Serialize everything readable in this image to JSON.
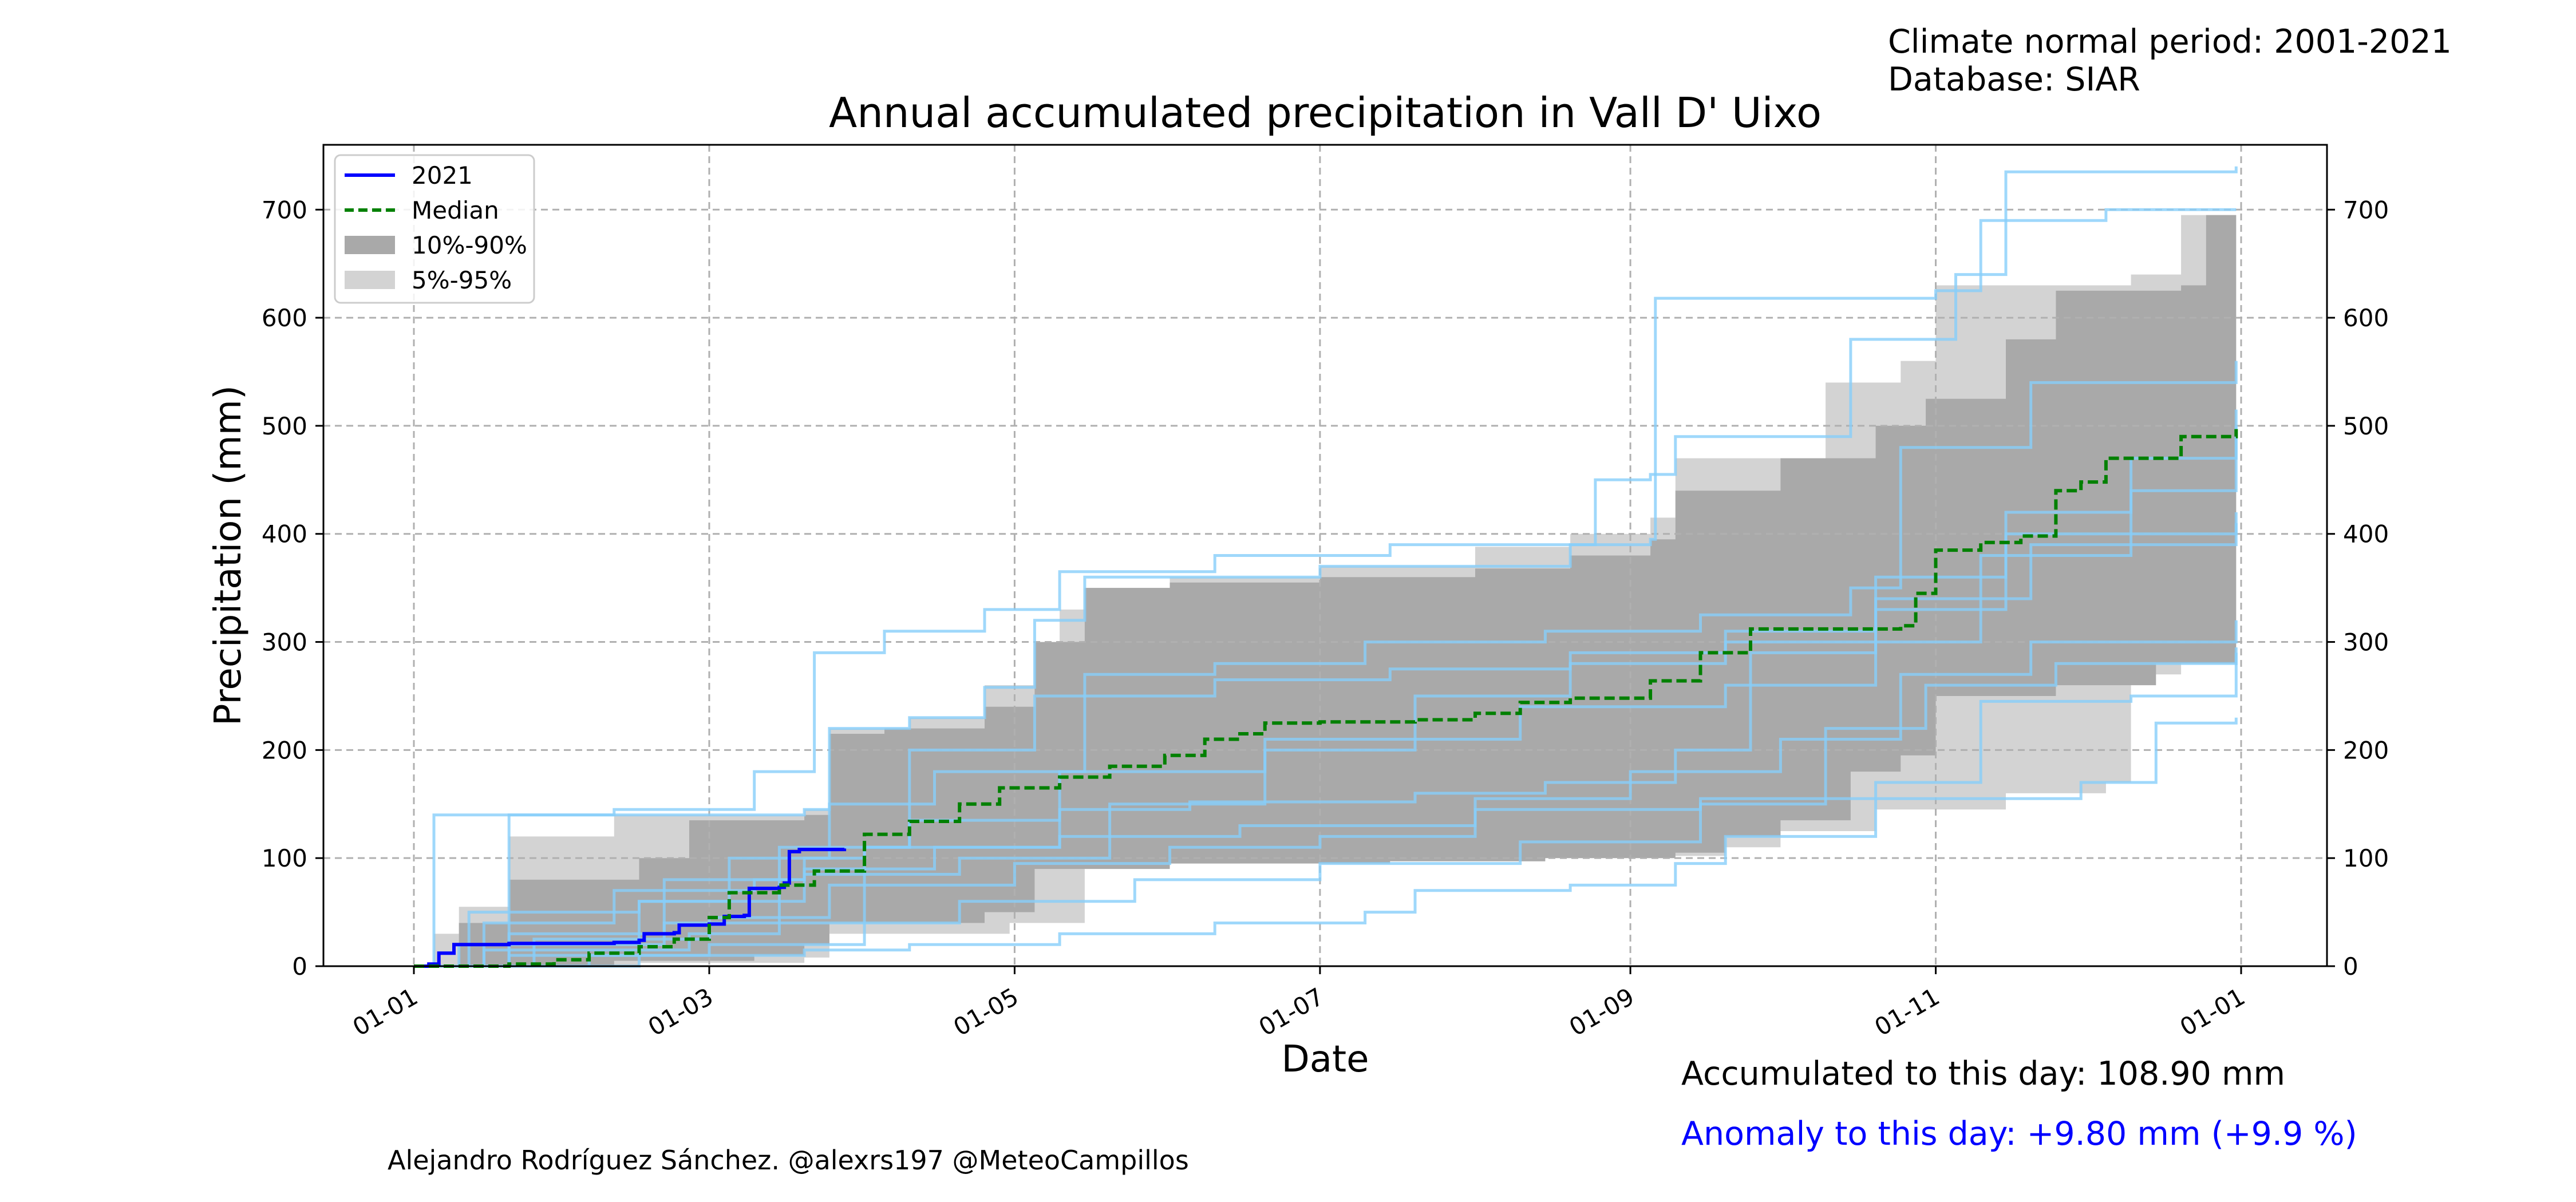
{
  "header": {
    "climate_normal": "Climate normal period: 2001-2021",
    "database": "Database: SIAR"
  },
  "footer": {
    "accumulated": "Accumulated to this day: 108.90 mm",
    "anomaly": "Anomaly to this day: +9.80 mm (+9.9 %)",
    "credit": "Alejandro Rodríguez Sánchez. @alexrs197 @MeteoCampillos"
  },
  "colors": {
    "current_year": "#0000ff",
    "median": "#008000",
    "band_10_90": "#a9a9a9",
    "band_5_95": "#d3d3d3",
    "historical_years": "#87cefa",
    "grid": "#b0b0b0"
  },
  "chart_data": {
    "type": "line",
    "title": "Annual accumulated precipitation in Vall D' Uixo",
    "xlabel": "Date",
    "ylabel": "Precipitation (mm)",
    "x_ticks": [
      "01-01",
      "01-03",
      "01-05",
      "01-07",
      "01-09",
      "01-11",
      "01-01"
    ],
    "y_ticks": [
      0,
      100,
      200,
      300,
      400,
      500,
      600,
      700
    ],
    "ylim": [
      0,
      760
    ],
    "grid": true,
    "legend_position": "top-left",
    "legend": [
      "2021",
      "Median",
      "10%-90%",
      "5%-95%"
    ],
    "series": [
      {
        "name": "2021",
        "style": "solid",
        "points": [
          [
            "01-01",
            0
          ],
          [
            "01-04",
            2
          ],
          [
            "01-06",
            12
          ],
          [
            "01-09",
            20
          ],
          [
            "01-15",
            20
          ],
          [
            "01-20",
            21
          ],
          [
            "02-05",
            21
          ],
          [
            "02-10",
            22
          ],
          [
            "02-15",
            24
          ],
          [
            "02-16",
            30
          ],
          [
            "02-22",
            31
          ],
          [
            "02-23",
            38
          ],
          [
            "03-01",
            39
          ],
          [
            "03-04",
            46
          ],
          [
            "03-08",
            47
          ],
          [
            "03-09",
            72
          ],
          [
            "03-15",
            73
          ],
          [
            "03-16",
            77
          ],
          [
            "03-17",
            106
          ],
          [
            "03-19",
            108
          ],
          [
            "03-28",
            108.9
          ]
        ]
      },
      {
        "name": "Median",
        "style": "dashed",
        "points": [
          [
            "01-01",
            0
          ],
          [
            "01-20",
            2
          ],
          [
            "01-29",
            6
          ],
          [
            "02-05",
            12
          ],
          [
            "02-15",
            18
          ],
          [
            "02-22",
            25
          ],
          [
            "03-01",
            45
          ],
          [
            "03-05",
            68
          ],
          [
            "03-15",
            75
          ],
          [
            "03-22",
            88
          ],
          [
            "04-01",
            122
          ],
          [
            "04-10",
            134
          ],
          [
            "04-20",
            150
          ],
          [
            "04-28",
            165
          ],
          [
            "05-10",
            175
          ],
          [
            "05-20",
            185
          ],
          [
            "05-31",
            195
          ],
          [
            "06-08",
            210
          ],
          [
            "06-15",
            215
          ],
          [
            "06-20",
            225
          ],
          [
            "07-01",
            226
          ],
          [
            "07-20",
            228
          ],
          [
            "08-01",
            234
          ],
          [
            "08-10",
            244
          ],
          [
            "08-20",
            248
          ],
          [
            "09-05",
            264
          ],
          [
            "09-15",
            290
          ],
          [
            "09-25",
            312
          ],
          [
            "10-25",
            315
          ],
          [
            "10-28",
            345
          ],
          [
            "11-01",
            385
          ],
          [
            "11-10",
            392
          ],
          [
            "11-18",
            398
          ],
          [
            "11-25",
            440
          ],
          [
            "11-30",
            448
          ],
          [
            "12-05",
            470
          ],
          [
            "12-20",
            490
          ],
          [
            "12-31",
            497
          ]
        ]
      }
    ],
    "bands": [
      {
        "name": "5%-95%",
        "upper": [
          [
            "01-01",
            0
          ],
          [
            "01-05",
            30
          ],
          [
            "01-10",
            55
          ],
          [
            "01-20",
            120
          ],
          [
            "02-10",
            140
          ],
          [
            "03-20",
            145
          ],
          [
            "03-25",
            220
          ],
          [
            "04-10",
            230
          ],
          [
            "04-25",
            260
          ],
          [
            "05-10",
            330
          ],
          [
            "05-15",
            350
          ],
          [
            "06-01",
            360
          ],
          [
            "07-01",
            370
          ],
          [
            "08-01",
            388
          ],
          [
            "08-20",
            400
          ],
          [
            "09-05",
            415
          ],
          [
            "09-10",
            470
          ],
          [
            "10-10",
            540
          ],
          [
            "10-25",
            560
          ],
          [
            "11-01",
            630
          ],
          [
            "12-10",
            640
          ],
          [
            "12-20",
            695
          ],
          [
            "12-31",
            700
          ]
        ],
        "lower": [
          [
            "01-01",
            0
          ],
          [
            "02-15",
            3
          ],
          [
            "03-20",
            8
          ],
          [
            "03-25",
            30
          ],
          [
            "04-30",
            40
          ],
          [
            "05-15",
            95
          ],
          [
            "06-15",
            98
          ],
          [
            "07-15",
            100
          ],
          [
            "08-15",
            102
          ],
          [
            "09-10",
            102
          ],
          [
            "09-20",
            110
          ],
          [
            "10-01",
            125
          ],
          [
            "10-20",
            145
          ],
          [
            "11-15",
            160
          ],
          [
            "12-05",
            170
          ],
          [
            "12-10",
            270
          ],
          [
            "12-20",
            285
          ],
          [
            "12-31",
            290
          ]
        ]
      },
      {
        "name": "10%-90%",
        "upper": [
          [
            "01-01",
            0
          ],
          [
            "01-10",
            40
          ],
          [
            "01-20",
            80
          ],
          [
            "02-15",
            100
          ],
          [
            "02-25",
            135
          ],
          [
            "03-20",
            140
          ],
          [
            "03-25",
            215
          ],
          [
            "04-05",
            220
          ],
          [
            "04-25",
            240
          ],
          [
            "05-05",
            300
          ],
          [
            "05-15",
            350
          ],
          [
            "06-01",
            355
          ],
          [
            "07-01",
            360
          ],
          [
            "08-01",
            368
          ],
          [
            "08-20",
            380
          ],
          [
            "09-05",
            395
          ],
          [
            "09-10",
            440
          ],
          [
            "10-01",
            470
          ],
          [
            "10-20",
            500
          ],
          [
            "10-30",
            525
          ],
          [
            "11-15",
            580
          ],
          [
            "11-25",
            625
          ],
          [
            "12-20",
            630
          ],
          [
            "12-25",
            695
          ],
          [
            "12-31",
            695
          ]
        ],
        "lower": [
          [
            "01-01",
            0
          ],
          [
            "02-10",
            5
          ],
          [
            "03-10",
            10
          ],
          [
            "03-20",
            20
          ],
          [
            "03-25",
            40
          ],
          [
            "04-25",
            50
          ],
          [
            "05-05",
            90
          ],
          [
            "06-01",
            95
          ],
          [
            "07-15",
            97
          ],
          [
            "08-15",
            100
          ],
          [
            "09-10",
            105
          ],
          [
            "09-20",
            120
          ],
          [
            "10-01",
            135
          ],
          [
            "10-15",
            180
          ],
          [
            "10-25",
            195
          ],
          [
            "11-01",
            250
          ],
          [
            "11-25",
            260
          ],
          [
            "12-15",
            280
          ],
          [
            "12-31",
            285
          ]
        ]
      }
    ],
    "historical_years": [
      [
        [
          "01-01",
          0
        ],
        [
          "01-20",
          140
        ],
        [
          "03-20",
          145
        ],
        [
          "03-25",
          220
        ],
        [
          "04-10",
          230
        ],
        [
          "04-25",
          258
        ],
        [
          "05-05",
          320
        ],
        [
          "05-15",
          360
        ],
        [
          "07-01",
          370
        ],
        [
          "08-20",
          390
        ],
        [
          "09-05",
          395
        ],
        [
          "09-06",
          618
        ],
        [
          "11-01",
          625
        ],
        [
          "11-10",
          690
        ],
        [
          "12-05",
          700
        ],
        [
          "12-31",
          700
        ]
      ],
      [
        [
          "01-01",
          0
        ],
        [
          "01-15",
          40
        ],
        [
          "02-10",
          70
        ],
        [
          "03-10",
          80
        ],
        [
          "03-20",
          100
        ],
        [
          "04-01",
          110
        ],
        [
          "05-10",
          120
        ],
        [
          "06-15",
          130
        ],
        [
          "08-01",
          145
        ],
        [
          "09-15",
          155
        ],
        [
          "10-20",
          170
        ],
        [
          "11-10",
          245
        ],
        [
          "12-10",
          250
        ],
        [
          "12-31",
          290
        ]
      ],
      [
        [
          "01-01",
          0
        ],
        [
          "02-05",
          10
        ],
        [
          "03-20",
          15
        ],
        [
          "04-10",
          20
        ],
        [
          "05-10",
          30
        ],
        [
          "06-10",
          40
        ],
        [
          "07-10",
          50
        ],
        [
          "07-20",
          70
        ],
        [
          "08-20",
          75
        ],
        [
          "09-10",
          95
        ],
        [
          "09-20",
          120
        ],
        [
          "10-20",
          155
        ],
        [
          "11-30",
          170
        ],
        [
          "12-15",
          225
        ],
        [
          "12-31",
          230
        ]
      ],
      [
        [
          "01-01",
          0
        ],
        [
          "01-20",
          30
        ],
        [
          "02-20",
          80
        ],
        [
          "03-20",
          90
        ],
        [
          "04-15",
          110
        ],
        [
          "05-10",
          145
        ],
        [
          "06-05",
          152
        ],
        [
          "07-20",
          160
        ],
        [
          "08-15",
          170
        ],
        [
          "09-10",
          200
        ],
        [
          "09-25",
          290
        ],
        [
          "10-20",
          340
        ],
        [
          "11-20",
          390
        ],
        [
          "12-31",
          420
        ]
      ],
      [
        [
          "01-01",
          0
        ],
        [
          "01-10",
          20
        ],
        [
          "02-20",
          40
        ],
        [
          "03-15",
          110
        ],
        [
          "04-10",
          135
        ],
        [
          "05-10",
          180
        ],
        [
          "06-20",
          210
        ],
        [
          "08-10",
          240
        ],
        [
          "09-20",
          260
        ],
        [
          "10-20",
          300
        ],
        [
          "11-10",
          380
        ],
        [
          "12-10",
          440
        ],
        [
          "12-31",
          500
        ]
      ],
      [
        [
          "01-01",
          0
        ],
        [
          "02-15",
          60
        ],
        [
          "03-20",
          85
        ],
        [
          "04-20",
          100
        ],
        [
          "05-20",
          150
        ],
        [
          "06-20",
          200
        ],
        [
          "07-20",
          250
        ],
        [
          "08-20",
          280
        ],
        [
          "09-20",
          310
        ],
        [
          "10-20",
          360
        ],
        [
          "11-15",
          420
        ],
        [
          "12-10",
          470
        ],
        [
          "12-31",
          515
        ]
      ],
      [
        [
          "01-01",
          0
        ],
        [
          "01-25",
          25
        ],
        [
          "03-01",
          45
        ],
        [
          "03-25",
          75
        ],
        [
          "05-01",
          95
        ],
        [
          "06-01",
          110
        ],
        [
          "07-01",
          120
        ],
        [
          "08-01",
          155
        ],
        [
          "09-01",
          180
        ],
        [
          "10-01",
          210
        ],
        [
          "10-25",
          270
        ],
        [
          "11-20",
          300
        ],
        [
          "12-31",
          320
        ]
      ],
      [
        [
          "01-01",
          0
        ],
        [
          "01-12",
          50
        ],
        [
          "02-15",
          60
        ],
        [
          "03-05",
          100
        ],
        [
          "03-25",
          150
        ],
        [
          "04-15",
          180
        ],
        [
          "05-15",
          270
        ],
        [
          "06-10",
          280
        ],
        [
          "07-10",
          300
        ],
        [
          "08-15",
          310
        ],
        [
          "09-15",
          325
        ],
        [
          "10-15",
          350
        ],
        [
          "10-25",
          480
        ],
        [
          "11-20",
          540
        ],
        [
          "12-31",
          560
        ]
      ],
      [
        [
          "01-01",
          0
        ],
        [
          "01-15",
          15
        ],
        [
          "02-25",
          30
        ],
        [
          "03-15",
          40
        ],
        [
          "04-20",
          60
        ],
        [
          "05-25",
          80
        ],
        [
          "07-01",
          95
        ],
        [
          "08-10",
          115
        ],
        [
          "09-15",
          150
        ],
        [
          "10-10",
          220
        ],
        [
          "10-30",
          260
        ],
        [
          "11-25",
          280
        ],
        [
          "12-31",
          295
        ]
      ],
      [
        [
          "01-01",
          0
        ],
        [
          "01-20",
          10
        ],
        [
          "03-01",
          20
        ],
        [
          "04-01",
          110
        ],
        [
          "04-10",
          200
        ],
        [
          "05-05",
          250
        ],
        [
          "06-10",
          265
        ],
        [
          "07-15",
          275
        ],
        [
          "08-20",
          290
        ],
        [
          "09-20",
          300
        ],
        [
          "10-20",
          330
        ],
        [
          "11-15",
          400
        ],
        [
          "12-31",
          410
        ]
      ],
      [
        [
          "01-01",
          0
        ],
        [
          "01-05",
          140
        ],
        [
          "02-10",
          145
        ],
        [
          "03-10",
          180
        ],
        [
          "03-22",
          290
        ],
        [
          "04-05",
          310
        ],
        [
          "04-25",
          330
        ],
        [
          "05-10",
          365
        ],
        [
          "06-10",
          380
        ],
        [
          "07-15",
          390
        ],
        [
          "08-25",
          450
        ],
        [
          "09-05",
          455
        ],
        [
          "09-10",
          490
        ],
        [
          "10-15",
          580
        ],
        [
          "11-05",
          640
        ],
        [
          "11-15",
          735
        ],
        [
          "12-31",
          740
        ]
      ]
    ]
  }
}
